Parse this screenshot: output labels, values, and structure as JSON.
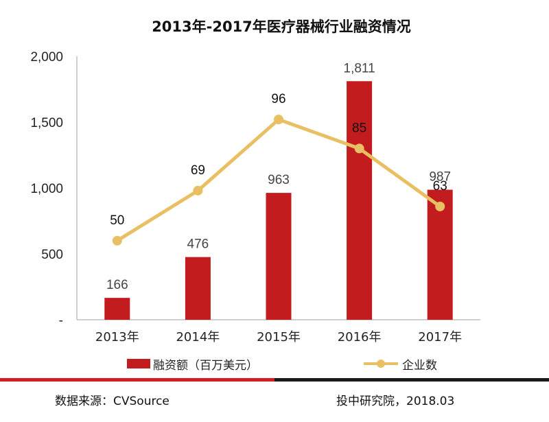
{
  "chart_data": {
    "type": "bar",
    "title": "2013年-2017年医疗器械行业融资情况",
    "categories": [
      "2013年",
      "2014年",
      "2015年",
      "2016年",
      "2017年"
    ],
    "series": [
      {
        "name": "融资额（百万美元）",
        "type": "bar",
        "axis": "left",
        "values": [
          166,
          476,
          963,
          1811,
          987
        ],
        "labels": [
          "166",
          "476",
          "963",
          "1,811",
          "987"
        ],
        "color": "#c31c1f"
      },
      {
        "name": "企业数",
        "type": "line",
        "axis": "right",
        "values": [
          50,
          69,
          96,
          85,
          63
        ],
        "labels": [
          "50",
          "69",
          "96",
          "85",
          "63"
        ],
        "color": "#e8bf63"
      }
    ],
    "ylim": [
      0,
      2000
    ],
    "yticks": [
      0,
      500,
      1000,
      1500,
      2000
    ],
    "ytick_labels": [
      "-",
      "500",
      "1,000",
      "1,500",
      "2,000"
    ],
    "y2lim": [
      20,
      120
    ],
    "legend": "bottom"
  },
  "colors": {
    "bar": "#c31c1f",
    "line": "#e8bf63",
    "divider_left": "#d71d24",
    "divider_right": "#1a1a1a"
  },
  "footer": {
    "source": "数据来源：CVSource",
    "credit": "投中研究院，2018.03"
  }
}
